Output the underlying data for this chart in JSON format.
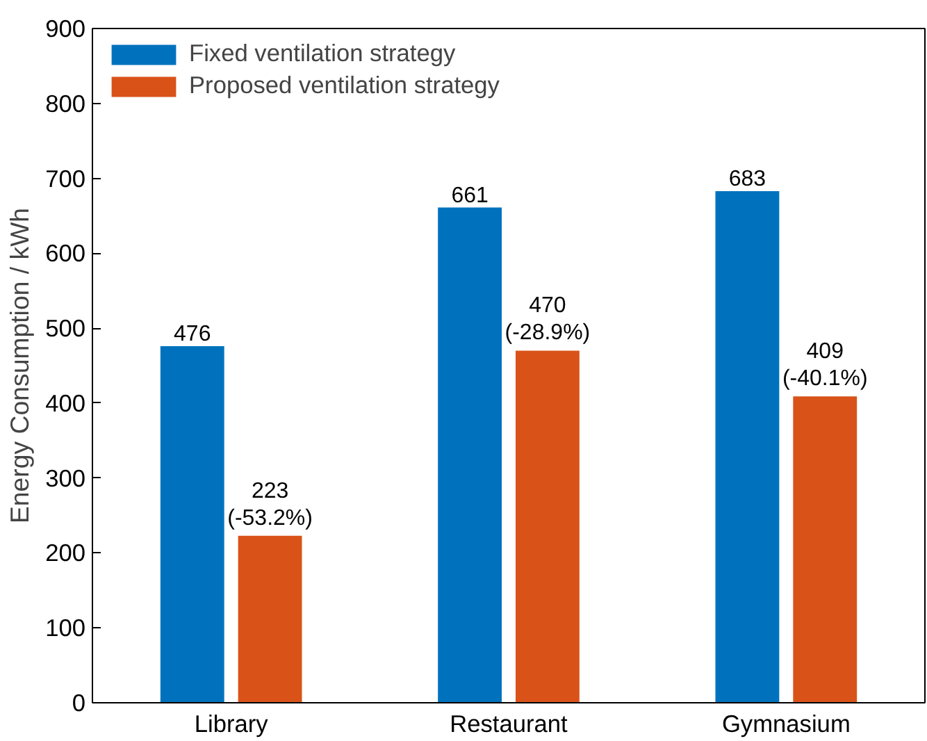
{
  "chart_data": {
    "type": "bar",
    "ylabel": "Energy Consumption / kWh",
    "categories": [
      "Library",
      "Restaurant",
      "Gymnasium"
    ],
    "series": [
      {
        "name": "Fixed ventilation strategy",
        "color": "#0072bd",
        "values": [
          476,
          661,
          683
        ],
        "value_labels": [
          "476",
          "661",
          "683"
        ]
      },
      {
        "name": "Proposed ventilation strategy",
        "color": "#d95319",
        "values": [
          223,
          470,
          409
        ],
        "value_labels": [
          "223\n(-53.2%)",
          "470\n(-28.9%)",
          "409\n(-40.1%)"
        ]
      }
    ],
    "ylim": [
      0,
      900
    ],
    "yticks": [
      0,
      100,
      200,
      300,
      400,
      500,
      600,
      700,
      800,
      900
    ],
    "grid": false,
    "legend": "top left"
  }
}
